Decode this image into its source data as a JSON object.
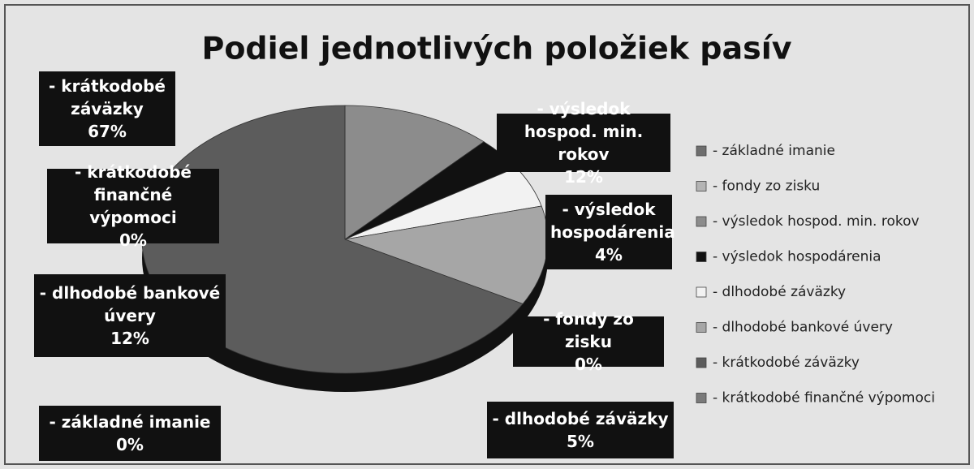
{
  "chart_data": {
    "type": "pie",
    "title": "Podiel jednotlivých položiek pasív",
    "categories": [
      "- základné imanie",
      "- fondy zo zisku",
      "- výsledok hospod. min. rokov",
      "- výsledok hospodárenia",
      "- dlhodobé záväzky",
      "- dlhodobé bankové úvery",
      "- krátkodobé záväzky",
      "- krátkodobé finančné výpomoci"
    ],
    "values": [
      0,
      0,
      12,
      4,
      5,
      12,
      67,
      0
    ],
    "value_labels": [
      "0%",
      "0%",
      "12%",
      "4%",
      "5%",
      "12%",
      "67%",
      "0%"
    ],
    "colors": [
      "#6e6e6e",
      "#b4b4b4",
      "#8c8c8c",
      "#111111",
      "#f2f2f2",
      "#a6a6a6",
      "#5c5c5c",
      "#7a7a7a"
    ],
    "legend": "right"
  }
}
